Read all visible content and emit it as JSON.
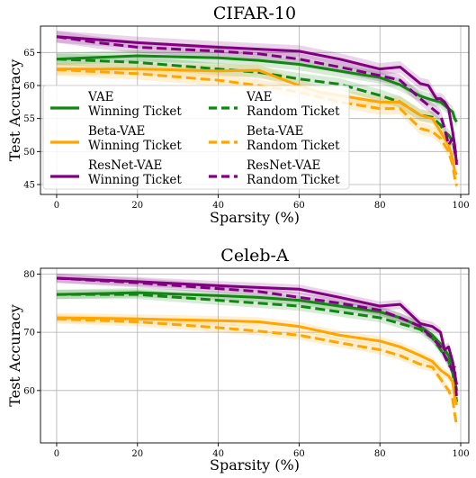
{
  "colors": {
    "VAE": "#128612",
    "Beta-VAE": "#ffa500",
    "ResNet-VAE": "#800080"
  },
  "legend_entries": [
    {
      "model": "VAE",
      "line1": "VAE",
      "line2": "Winning Ticket",
      "style": "solid"
    },
    {
      "model": "VAE",
      "line1": "VAE",
      "line2": "Random Ticket",
      "style": "dashed"
    },
    {
      "model": "Beta-VAE",
      "line1": "Beta-VAE",
      "line2": "Winning Ticket",
      "style": "solid"
    },
    {
      "model": "Beta-VAE",
      "line1": "Beta-VAE",
      "line2": "Random Ticket",
      "style": "dashed"
    },
    {
      "model": "ResNet-VAE",
      "line1": "ResNet-VAE",
      "line2": "Winning Ticket",
      "style": "solid"
    },
    {
      "model": "ResNet-VAE",
      "line1": "ResNet-VAE",
      "line2": "Random Ticket",
      "style": "dashed"
    }
  ],
  "chart_data": [
    {
      "type": "line",
      "title": "CIFAR-10",
      "xlabel": "Sparsity (%)",
      "ylabel": "Test Accuracy",
      "xlim": [
        -4,
        102
      ],
      "ylim": [
        43.5,
        69
      ],
      "xticks": [
        0,
        20,
        40,
        60,
        80,
        100
      ],
      "yticks": [
        45,
        50,
        55,
        60,
        65
      ],
      "grid": true,
      "legend_location": "lower-left",
      "band": 0.9,
      "series": [
        {
          "model": "VAE",
          "ticket": "Winning Ticket",
          "style": "solid",
          "x": [
            0,
            20,
            40,
            50,
            60,
            70,
            80,
            85,
            90,
            93,
            95,
            96,
            97,
            98,
            98.5,
            99
          ],
          "y": [
            64,
            64.5,
            64.2,
            63.8,
            63.2,
            62.2,
            61.2,
            60.1,
            58.4,
            57.8,
            57.5,
            57,
            56.5,
            56,
            55,
            54.5
          ]
        },
        {
          "model": "VAE",
          "ticket": "Random Ticket",
          "style": "dashed",
          "x": [
            0,
            20,
            40,
            50,
            60,
            70,
            80,
            85,
            90,
            93,
            95,
            96,
            97,
            98,
            98.5,
            99
          ],
          "y": [
            64,
            63.5,
            62.5,
            62,
            61,
            60.2,
            58.5,
            57.5,
            55.5,
            55.2,
            54,
            53,
            52.5,
            51.5,
            50.5,
            49.5
          ]
        },
        {
          "model": "Beta-VAE",
          "ticket": "Winning Ticket",
          "style": "solid",
          "x": [
            0,
            20,
            40,
            50,
            60,
            65,
            70,
            80,
            85,
            90,
            93,
            95,
            96,
            97,
            98,
            98.5,
            99
          ],
          "y": [
            62.5,
            62.5,
            62.2,
            62.3,
            60,
            59,
            58.5,
            57.5,
            57.5,
            55.5,
            55,
            53,
            52,
            51,
            49,
            47,
            46.5
          ]
        },
        {
          "model": "Beta-VAE",
          "ticket": "Random Ticket",
          "style": "dashed",
          "x": [
            0,
            20,
            40,
            50,
            60,
            70,
            80,
            85,
            90,
            93,
            95,
            96,
            97,
            98,
            98.5,
            99
          ],
          "y": [
            62.4,
            61.8,
            60.8,
            60,
            59,
            57.5,
            56.5,
            56.5,
            53.5,
            53,
            52,
            51,
            50,
            48,
            46,
            44.8
          ]
        },
        {
          "model": "ResNet-VAE",
          "ticket": "Winning Ticket",
          "style": "solid",
          "x": [
            0,
            20,
            40,
            50,
            60,
            70,
            80,
            85,
            90,
            92,
            94,
            95,
            96,
            97,
            98,
            98.5,
            99
          ],
          "y": [
            67.4,
            66.5,
            65.8,
            65.5,
            65.2,
            64,
            62.5,
            62.8,
            60.3,
            60,
            58,
            58,
            57.5,
            56.5,
            53,
            51,
            48
          ]
        },
        {
          "model": "ResNet-VAE",
          "ticket": "Random Ticket",
          "style": "dashed",
          "x": [
            0,
            10,
            20,
            40,
            50,
            60,
            70,
            80,
            85,
            90,
            93,
            95,
            96,
            97,
            98,
            98.5,
            99
          ],
          "y": [
            67.4,
            66.5,
            65.8,
            65.2,
            64.8,
            64,
            62.8,
            61.5,
            60.8,
            58,
            56.5,
            55.5,
            53.5,
            51,
            52,
            50,
            48.5
          ]
        }
      ]
    },
    {
      "type": "line",
      "title": "Celeb-A",
      "xlabel": "Sparsity (%)",
      "ylabel": "Test Accuracy",
      "xlim": [
        -4,
        102
      ],
      "ylim": [
        51,
        81
      ],
      "xticks": [
        0,
        20,
        40,
        60,
        80,
        100
      ],
      "yticks": [
        60,
        70,
        80
      ],
      "grid": true,
      "band": 0.8,
      "series": [
        {
          "model": "VAE",
          "ticket": "Winning Ticket",
          "style": "solid",
          "x": [
            0,
            20,
            40,
            50,
            60,
            70,
            80,
            85,
            90,
            93,
            95,
            96,
            97,
            98,
            98.5,
            99
          ],
          "y": [
            76.5,
            76.8,
            76.3,
            76,
            75.5,
            74.5,
            73.5,
            72.5,
            71,
            69.5,
            68,
            67,
            66,
            64,
            62,
            60
          ]
        },
        {
          "model": "VAE",
          "ticket": "Random Ticket",
          "style": "dashed",
          "x": [
            0,
            20,
            40,
            50,
            60,
            70,
            80,
            85,
            90,
            93,
            95,
            96,
            97,
            98,
            98.5,
            99
          ],
          "y": [
            76.5,
            76.5,
            75.5,
            75,
            74.5,
            73.5,
            72.5,
            71.5,
            70.5,
            69,
            67,
            66,
            65,
            63,
            61,
            58
          ]
        },
        {
          "model": "Beta-VAE",
          "ticket": "Winning Ticket",
          "style": "solid",
          "x": [
            0,
            20,
            40,
            50,
            60,
            70,
            80,
            85,
            90,
            93,
            95,
            96,
            97,
            98,
            98.5,
            99
          ],
          "y": [
            72.5,
            72.3,
            72,
            71.8,
            71,
            69.5,
            68.5,
            67.5,
            66,
            65,
            63.5,
            63,
            62.5,
            61.5,
            59,
            57.5
          ]
        },
        {
          "model": "Beta-VAE",
          "ticket": "Random Ticket",
          "style": "dashed",
          "x": [
            0,
            20,
            40,
            50,
            60,
            70,
            80,
            85,
            90,
            93,
            95,
            96,
            97,
            98,
            98.5,
            99
          ],
          "y": [
            72.3,
            71.8,
            70.8,
            70.2,
            69.5,
            68.2,
            67,
            66,
            64.5,
            64,
            62,
            61,
            60,
            58.5,
            56,
            54
          ]
        },
        {
          "model": "ResNet-VAE",
          "ticket": "Winning Ticket",
          "style": "solid",
          "x": [
            0,
            20,
            40,
            50,
            60,
            70,
            80,
            85,
            90,
            93,
            95,
            96,
            97,
            98,
            98.5,
            99
          ],
          "y": [
            79.3,
            78.7,
            78,
            77.7,
            77.4,
            76,
            74.5,
            74.8,
            71.5,
            71,
            70,
            67,
            67.5,
            65,
            63,
            61
          ]
        },
        {
          "model": "ResNet-VAE",
          "ticket": "Random Ticket",
          "style": "dashed",
          "x": [
            0,
            20,
            40,
            50,
            60,
            70,
            80,
            85,
            90,
            93,
            95,
            96,
            97,
            98,
            98.5,
            99
          ],
          "y": [
            79.3,
            78.5,
            77.5,
            77,
            76,
            75,
            73.8,
            72.5,
            71,
            69,
            67.5,
            66,
            64.5,
            63.5,
            64,
            58.5
          ]
        }
      ]
    }
  ]
}
